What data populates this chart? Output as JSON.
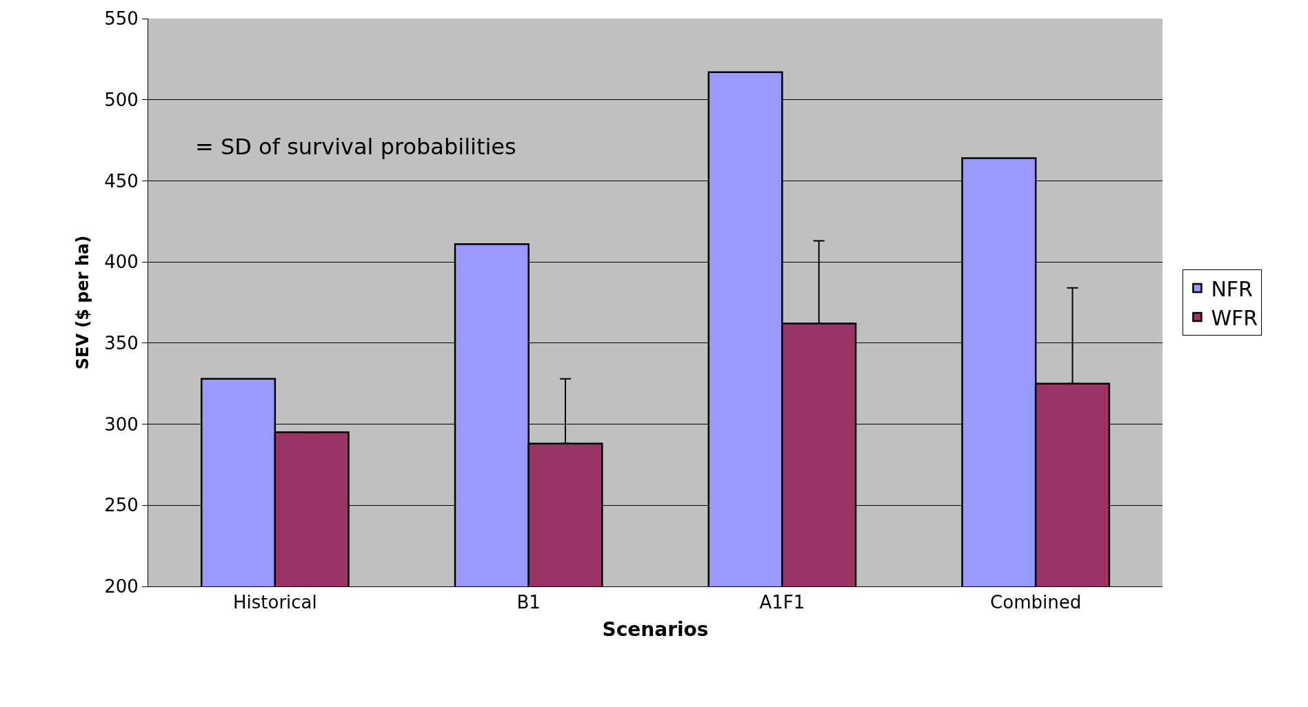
{
  "chart_data": {
    "type": "bar",
    "xlabel": "Scenarios",
    "ylabel": "SEV ($ per ha)",
    "categories": [
      "Historical",
      "B1",
      "A1F1",
      "Combined"
    ],
    "series": [
      {
        "name": "NFR",
        "color": "#9999ff",
        "values": [
          328,
          411,
          517,
          464
        ]
      },
      {
        "name": "WFR",
        "color": "#993366",
        "values": [
          295,
          288,
          362,
          325
        ],
        "errors": [
          null,
          [
            288,
            328
          ],
          [
            362,
            413
          ],
          [
            325,
            384
          ]
        ]
      }
    ],
    "ylim": [
      200,
      550
    ],
    "yticks": [
      200,
      250,
      300,
      350,
      400,
      450,
      500,
      550
    ],
    "grid": "y",
    "legend": "right",
    "annotations": [
      "= SD of survival probabilities"
    ]
  }
}
